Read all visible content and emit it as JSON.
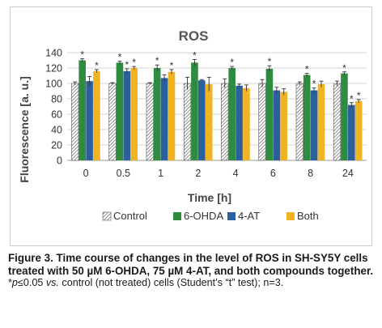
{
  "caption": {
    "label": "Figure 3.",
    "text": "Time course of changes in the level of ROS in SH-SY5Y cells treated with 50 µM 6-OHDA, 75 µM 4-AT, and both compounds together.",
    "note_mark": "*",
    "note_p": "p",
    "note_threshold": "≤0.05 ",
    "note_vs": "vs.",
    "note_rest": " control (not treated) cells (Student’s “t” test); n=3."
  },
  "chart_data": {
    "type": "bar",
    "title": "ROS",
    "xlabel": "Time [h]",
    "ylabel": "Fluorescence [a. u.]",
    "ylim": [
      0,
      140
    ],
    "yticks": [
      "0",
      "20",
      "40",
      "60",
      "80",
      "100",
      "120",
      "140"
    ],
    "grid": true,
    "legend_position": "bottom",
    "categories": [
      "0",
      "0.5",
      "1",
      "2",
      "4",
      "6",
      "8",
      "24"
    ],
    "series": [
      {
        "name": "Control",
        "color": "#ffffff",
        "pattern": "diagonal-hatch",
        "values": [
          100,
          100,
          100,
          100,
          100,
          100,
          100,
          100
        ],
        "errors": [
          2,
          1,
          1,
          8,
          6,
          5,
          2,
          3
        ],
        "significant": [
          false,
          false,
          false,
          false,
          false,
          false,
          false,
          false
        ]
      },
      {
        "name": "6-OHDA",
        "color": "#2e8b3f",
        "values": [
          130,
          127,
          120,
          127,
          120,
          119,
          111,
          113
        ],
        "errors": [
          2,
          2,
          4,
          4,
          2,
          4,
          2,
          2
        ],
        "significant": [
          true,
          true,
          true,
          true,
          true,
          true,
          true,
          true
        ]
      },
      {
        "name": "4-AT",
        "color": "#2c5f9e",
        "values": [
          103,
          116,
          107,
          104,
          97,
          91,
          91,
          72
        ],
        "errors": [
          6,
          3,
          4,
          1,
          2,
          4,
          3,
          3
        ],
        "significant": [
          false,
          true,
          false,
          false,
          false,
          false,
          true,
          true
        ]
      },
      {
        "name": "Both",
        "color": "#f0b323",
        "values": [
          116,
          120,
          115,
          99,
          94,
          89,
          99,
          77
        ],
        "errors": [
          2,
          2,
          3,
          9,
          4,
          4,
          4,
          2
        ],
        "significant": [
          true,
          true,
          true,
          false,
          false,
          false,
          false,
          true
        ]
      }
    ],
    "significance_mark": "*"
  }
}
